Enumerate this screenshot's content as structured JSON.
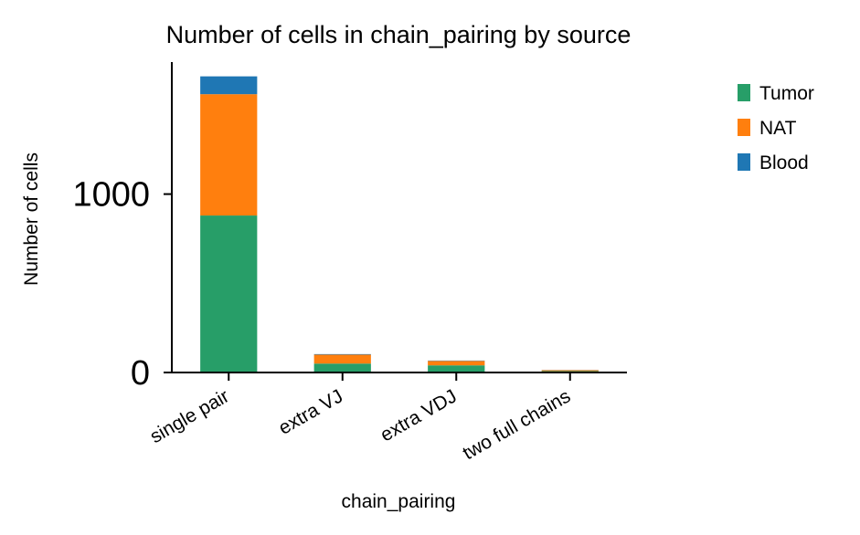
{
  "chart_data": {
    "type": "bar",
    "stacked": true,
    "title": "Number of cells in chain_pairing by source",
    "xlabel": "chain_pairing",
    "ylabel": "Number of cells",
    "categories": [
      "single pair",
      "extra VJ",
      "extra VDJ",
      "two full chains"
    ],
    "series": [
      {
        "name": "Tumor",
        "color": "#279e68",
        "values": [
          880,
          50,
          40,
          8
        ]
      },
      {
        "name": "NAT",
        "color": "#ff7f0e",
        "values": [
          680,
          50,
          25,
          5
        ]
      },
      {
        "name": "Blood",
        "color": "#1f77b4",
        "values": [
          100,
          3,
          2,
          1
        ]
      }
    ],
    "yticks": [
      0,
      1000
    ],
    "ylim": [
      0,
      1740
    ],
    "legend_position": "outside-right",
    "grid": false
  }
}
